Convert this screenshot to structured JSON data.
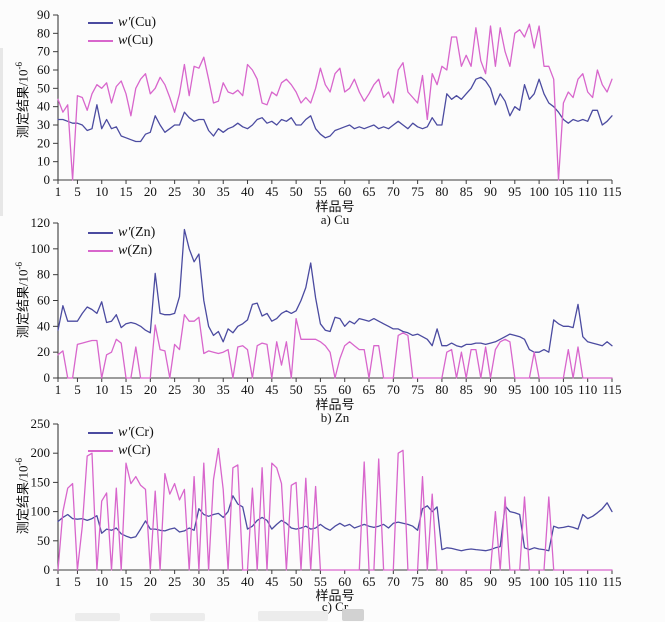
{
  "figure": {
    "background": "#fcfcfc",
    "axis_color": "#3c3c3c",
    "text_color": "#111111"
  },
  "chart_data": [
    {
      "id": "cu",
      "type": "line",
      "title": "a) Cu",
      "xlabel": "样品号",
      "ylabel": "测定结果/10⁻⁶",
      "ylabel_base": "测定结果/10",
      "ylabel_sup": "-6",
      "ylim": [
        0,
        90
      ],
      "ytick_step": 10,
      "x_range": [
        1,
        115
      ],
      "xticks": [
        1,
        5,
        10,
        15,
        20,
        25,
        30,
        35,
        40,
        45,
        50,
        55,
        60,
        65,
        70,
        75,
        80,
        85,
        90,
        95,
        100,
        105,
        110,
        115
      ],
      "grid": false,
      "legend_position": "top-left",
      "series": [
        {
          "name": "w′(Cu)",
          "sym": "w′",
          "el": "(Cu)",
          "color": "#4b4ba0",
          "values": [
            33,
            33,
            32,
            31,
            31,
            30,
            27,
            28,
            41,
            28,
            33,
            28,
            29,
            24,
            23,
            22,
            21,
            21,
            25,
            26,
            35,
            30,
            26,
            28,
            30,
            30,
            37,
            34,
            32,
            33,
            33,
            27,
            24,
            28,
            26,
            28,
            29,
            31,
            29,
            28,
            30,
            33,
            34,
            31,
            32,
            30,
            33,
            32,
            34,
            30,
            30,
            33,
            35,
            28,
            25,
            23,
            24,
            27,
            28,
            29,
            30,
            28,
            29,
            28,
            29,
            30,
            28,
            29,
            28,
            30,
            32,
            30,
            28,
            31,
            29,
            28,
            29,
            34,
            30,
            30,
            47,
            44,
            46,
            44,
            47,
            50,
            55,
            56,
            54,
            50,
            41,
            47,
            43,
            35,
            40,
            38,
            52,
            44,
            47,
            55,
            47,
            42,
            40,
            37,
            33,
            31,
            33,
            32,
            33,
            32,
            38,
            38,
            30,
            32,
            35
          ]
        },
        {
          "name": "w(Cu)",
          "sym": "w",
          "el": "(Cu)",
          "color": "#d866cc",
          "values": [
            44,
            37,
            41,
            0,
            46,
            45,
            38,
            47,
            52,
            50,
            53,
            42,
            51,
            54,
            47,
            35,
            50,
            55,
            58,
            47,
            50,
            56,
            52,
            45,
            37,
            47,
            63,
            46,
            62,
            61,
            67,
            55,
            42,
            43,
            53,
            48,
            47,
            49,
            46,
            63,
            60,
            55,
            42,
            41,
            48,
            46,
            53,
            55,
            52,
            48,
            42,
            45,
            42,
            50,
            61,
            52,
            48,
            58,
            61,
            48,
            50,
            55,
            48,
            43,
            47,
            52,
            55,
            45,
            48,
            42,
            60,
            64,
            48,
            45,
            42,
            57,
            33,
            58,
            52,
            62,
            60,
            78,
            78,
            62,
            68,
            62,
            83,
            65,
            58,
            84,
            62,
            83,
            70,
            62,
            80,
            82,
            78,
            85,
            72,
            84,
            62,
            62,
            55,
            0,
            42,
            48,
            45,
            55,
            58,
            48,
            45,
            60,
            52,
            48,
            55
          ]
        }
      ]
    },
    {
      "id": "zn",
      "type": "line",
      "title": "b) Zn",
      "xlabel": "样品号",
      "ylabel": "测定结果/10⁻⁶",
      "ylabel_base": "测定结果/10",
      "ylabel_sup": "-6",
      "ylim": [
        0,
        120
      ],
      "ytick_step": 20,
      "x_range": [
        1,
        115
      ],
      "xticks": [
        1,
        5,
        10,
        15,
        20,
        25,
        30,
        35,
        40,
        45,
        50,
        55,
        60,
        65,
        70,
        75,
        80,
        85,
        90,
        95,
        100,
        105,
        110,
        115
      ],
      "grid": false,
      "legend_position": "top-left",
      "series": [
        {
          "name": "w′(Zn)",
          "sym": "w′",
          "el": "(Zn)",
          "color": "#4b4ba0",
          "values": [
            37,
            56,
            44,
            44,
            44,
            50,
            55,
            53,
            50,
            59,
            43,
            44,
            49,
            39,
            42,
            43,
            42,
            40,
            37,
            35,
            81,
            50,
            49,
            49,
            50,
            63,
            115,
            100,
            90,
            96,
            60,
            40,
            33,
            36,
            28,
            38,
            35,
            40,
            42,
            45,
            57,
            58,
            48,
            50,
            44,
            46,
            50,
            52,
            50,
            52,
            60,
            70,
            89,
            62,
            42,
            37,
            36,
            47,
            46,
            40,
            44,
            42,
            46,
            45,
            44,
            46,
            44,
            42,
            40,
            38,
            38,
            36,
            35,
            33,
            34,
            32,
            30,
            25,
            38,
            25,
            25,
            27,
            25,
            24,
            26,
            26,
            27,
            27,
            26,
            27,
            28,
            30,
            32,
            34,
            33,
            32,
            30,
            22,
            20,
            20,
            22,
            20,
            45,
            42,
            40,
            40,
            39,
            57,
            32,
            28,
            27,
            26,
            25,
            28,
            25
          ]
        },
        {
          "name": "w(Zn)",
          "sym": "w",
          "el": "(Zn)",
          "color": "#d866cc",
          "values": [
            18,
            21,
            0,
            0,
            26,
            27,
            28,
            29,
            29,
            0,
            18,
            20,
            30,
            27,
            0,
            0,
            24,
            0,
            0,
            0,
            41,
            22,
            21,
            0,
            26,
            22,
            49,
            44,
            44,
            47,
            19,
            21,
            20,
            19,
            20,
            22,
            0,
            24,
            25,
            22,
            0,
            25,
            27,
            26,
            0,
            28,
            10,
            28,
            0,
            46,
            30,
            30,
            30,
            30,
            28,
            25,
            20,
            0,
            15,
            25,
            28,
            25,
            22,
            22,
            0,
            25,
            25,
            0,
            0,
            0,
            33,
            35,
            33,
            0,
            0,
            0,
            0,
            0,
            0,
            0,
            20,
            22,
            0,
            20,
            0,
            22,
            22,
            0,
            24,
            0,
            22,
            28,
            30,
            28,
            0,
            0,
            0,
            0,
            20,
            0,
            0,
            0,
            0,
            0,
            0,
            22,
            0,
            24,
            0,
            0,
            0,
            0,
            0,
            0,
            0
          ]
        }
      ]
    },
    {
      "id": "cr",
      "type": "line",
      "title": "c) Cr",
      "xlabel": "样品号",
      "ylabel": "测定结果/10⁻⁶",
      "ylabel_base": "测定结果/10",
      "ylabel_sup": "-6",
      "ylim": [
        0,
        250
      ],
      "ytick_step": 50,
      "x_range": [
        1,
        115
      ],
      "xticks": [
        1,
        5,
        10,
        15,
        20,
        25,
        30,
        35,
        40,
        45,
        50,
        55,
        60,
        65,
        70,
        75,
        80,
        85,
        90,
        95,
        100,
        105,
        110,
        115
      ],
      "grid": false,
      "legend_position": "top-left",
      "series": [
        {
          "name": "w′(Cr)",
          "sym": "w′",
          "el": "(Cr)",
          "color": "#4b4ba0",
          "values": [
            83,
            90,
            95,
            88,
            87,
            88,
            85,
            88,
            93,
            63,
            70,
            68,
            72,
            62,
            58,
            55,
            57,
            70,
            84,
            70,
            70,
            68,
            67,
            70,
            72,
            65,
            67,
            72,
            68,
            105,
            95,
            92,
            95,
            97,
            90,
            100,
            127,
            113,
            108,
            70,
            75,
            85,
            90,
            85,
            70,
            78,
            85,
            80,
            72,
            70,
            72,
            75,
            70,
            72,
            78,
            72,
            68,
            75,
            80,
            75,
            78,
            72,
            75,
            78,
            75,
            73,
            75,
            78,
            72,
            80,
            82,
            80,
            78,
            75,
            68,
            105,
            110,
            100,
            108,
            35,
            38,
            37,
            35,
            33,
            35,
            36,
            35,
            34,
            33,
            35,
            38,
            40,
            110,
            100,
            98,
            95,
            38,
            35,
            38,
            36,
            35,
            33,
            75,
            72,
            73,
            75,
            73,
            70,
            95,
            88,
            92,
            98,
            105,
            115,
            100
          ]
        },
        {
          "name": "w(Cr)",
          "sym": "w",
          "el": "(Cr)",
          "color": "#d866cc",
          "values": [
            0,
            100,
            140,
            148,
            0,
            75,
            195,
            200,
            0,
            118,
            132,
            0,
            140,
            0,
            183,
            148,
            160,
            145,
            138,
            0,
            135,
            0,
            165,
            130,
            148,
            120,
            138,
            0,
            160,
            0,
            183,
            0,
            155,
            208,
            138,
            0,
            175,
            180,
            0,
            0,
            140,
            0,
            175,
            0,
            183,
            175,
            148,
            0,
            145,
            150,
            0,
            157,
            0,
            143,
            0,
            0,
            0,
            0,
            0,
            0,
            0,
            0,
            0,
            185,
            0,
            0,
            190,
            0,
            0,
            0,
            200,
            205,
            0,
            0,
            0,
            160,
            0,
            130,
            0,
            0,
            0,
            0,
            0,
            0,
            0,
            0,
            0,
            0,
            0,
            0,
            100,
            0,
            125,
            0,
            0,
            0,
            125,
            0,
            0,
            0,
            0,
            125,
            0,
            0,
            0,
            0,
            0,
            0,
            0,
            0,
            0,
            0,
            0,
            0,
            0
          ]
        }
      ]
    }
  ]
}
